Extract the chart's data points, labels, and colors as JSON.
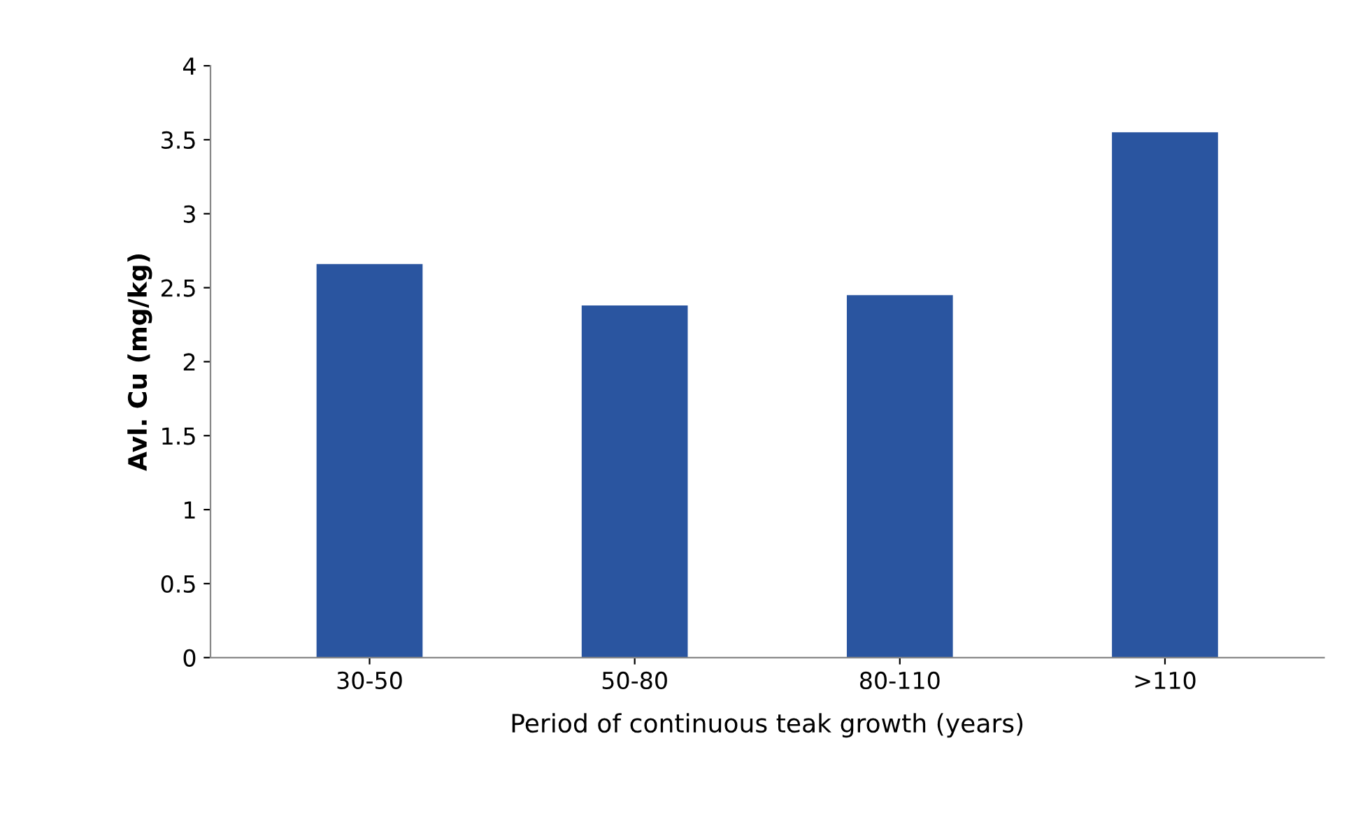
{
  "chart_data": {
    "type": "bar",
    "xlabel": "Period of continuous teak growth (years)",
    "ylabel": "Avl. Cu (mg/kg)",
    "categories": [
      "30-50",
      "50-80",
      "80-110",
      ">110"
    ],
    "values": [
      2.66,
      2.38,
      2.45,
      3.55
    ],
    "color": "#2a55a0",
    "ylim": [
      0,
      4
    ],
    "yticks": [
      0,
      0.5,
      1,
      1.5,
      2,
      2.5,
      3,
      3.5,
      4
    ],
    "grid": false,
    "legend": false
  }
}
